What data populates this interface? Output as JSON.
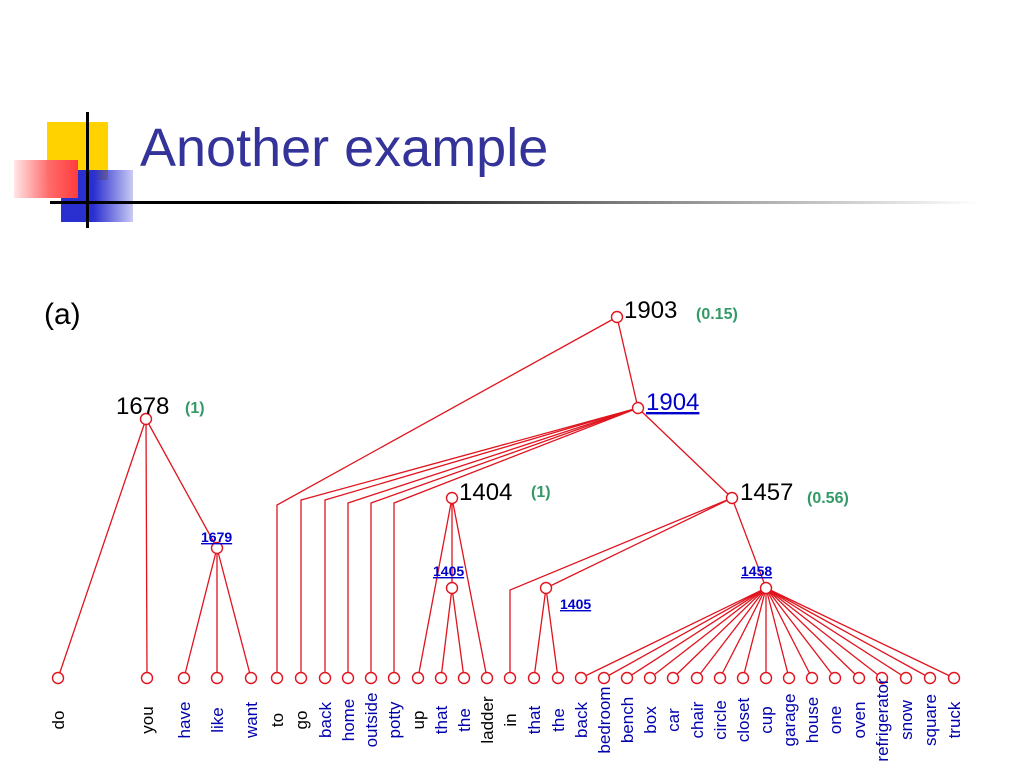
{
  "slide": {
    "title": "Another example",
    "label": "(a)"
  },
  "colors": {
    "title": "#333399",
    "edges": "#e0141e",
    "probability": "#339966",
    "link": "#0000cc",
    "leaf_blue": "#0000aa"
  },
  "diagram": {
    "nodes": {
      "n1678": {
        "label": "1678",
        "prob": "(1)"
      },
      "n1679": {
        "label": "1679"
      },
      "n1903": {
        "label": "1903",
        "prob": "(0.15)"
      },
      "n1904": {
        "label": "1904"
      },
      "n1404": {
        "label": "1404",
        "prob": "(1)"
      },
      "n1405a": {
        "label": "1405"
      },
      "n1405b": {
        "label": "1405"
      },
      "n1457": {
        "label": "1457",
        "prob": "(0.56)"
      },
      "n1458": {
        "label": "1458"
      }
    },
    "leaves": [
      {
        "id": "do",
        "text": "do",
        "color": "black"
      },
      {
        "id": "you",
        "text": "you",
        "color": "black"
      },
      {
        "id": "have",
        "text": "have",
        "color": "blue"
      },
      {
        "id": "like",
        "text": "like",
        "color": "blue"
      },
      {
        "id": "want",
        "text": "want",
        "color": "blue"
      },
      {
        "id": "to",
        "text": "to",
        "color": "black"
      },
      {
        "id": "go",
        "text": "go",
        "color": "black"
      },
      {
        "id": "back1",
        "text": "back",
        "color": "blue"
      },
      {
        "id": "home",
        "text": "home",
        "color": "blue"
      },
      {
        "id": "outside",
        "text": "outside",
        "color": "blue"
      },
      {
        "id": "potty",
        "text": "potty",
        "color": "blue"
      },
      {
        "id": "up",
        "text": "up",
        "color": "black"
      },
      {
        "id": "that1",
        "text": "that",
        "color": "blue"
      },
      {
        "id": "the1",
        "text": "the",
        "color": "blue"
      },
      {
        "id": "ladder",
        "text": "ladder",
        "color": "black"
      },
      {
        "id": "in",
        "text": "in",
        "color": "black"
      },
      {
        "id": "that2",
        "text": "that",
        "color": "blue"
      },
      {
        "id": "the2",
        "text": "the",
        "color": "blue"
      },
      {
        "id": "back2",
        "text": "back",
        "color": "blue"
      },
      {
        "id": "bedroom",
        "text": "bedroom",
        "color": "blue"
      },
      {
        "id": "bench",
        "text": "bench",
        "color": "blue"
      },
      {
        "id": "box",
        "text": "box",
        "color": "blue"
      },
      {
        "id": "car",
        "text": "car",
        "color": "blue"
      },
      {
        "id": "chair",
        "text": "chair",
        "color": "blue"
      },
      {
        "id": "circle",
        "text": "circle",
        "color": "blue"
      },
      {
        "id": "closet",
        "text": "closet",
        "color": "blue"
      },
      {
        "id": "cup",
        "text": "cup",
        "color": "blue"
      },
      {
        "id": "garage",
        "text": "garage",
        "color": "blue"
      },
      {
        "id": "house",
        "text": "house",
        "color": "blue"
      },
      {
        "id": "one",
        "text": "one",
        "color": "blue"
      },
      {
        "id": "oven",
        "text": "oven",
        "color": "blue"
      },
      {
        "id": "refrigerator",
        "text": "refrigerator",
        "color": "blue"
      },
      {
        "id": "snow",
        "text": "snow",
        "color": "blue"
      },
      {
        "id": "square",
        "text": "square",
        "color": "blue"
      },
      {
        "id": "truck",
        "text": "truck",
        "color": "blue"
      }
    ],
    "edges": [
      [
        "n1678",
        "do"
      ],
      [
        "n1678",
        "you"
      ],
      [
        "n1678",
        "n1679"
      ],
      [
        "n1679",
        "have"
      ],
      [
        "n1679",
        "like"
      ],
      [
        "n1679",
        "want"
      ],
      [
        "n1903",
        "n1904"
      ],
      [
        "n1903",
        "to"
      ],
      [
        "n1904",
        "go"
      ],
      [
        "n1904",
        "back1"
      ],
      [
        "n1904",
        "home"
      ],
      [
        "n1904",
        "outside"
      ],
      [
        "n1904",
        "potty"
      ],
      [
        "n1904",
        "n1457"
      ],
      [
        "n1404",
        "up"
      ],
      [
        "n1404",
        "n1405a"
      ],
      [
        "n1404",
        "ladder"
      ],
      [
        "n1405a",
        "that1"
      ],
      [
        "n1405a",
        "the1"
      ],
      [
        "n1457",
        "in"
      ],
      [
        "n1457",
        "n1405b"
      ],
      [
        "n1457",
        "n1458"
      ],
      [
        "n1405b",
        "that2"
      ],
      [
        "n1405b",
        "the2"
      ],
      [
        "n1458",
        "back2"
      ],
      [
        "n1458",
        "bedroom"
      ],
      [
        "n1458",
        "bench"
      ],
      [
        "n1458",
        "box"
      ],
      [
        "n1458",
        "car"
      ],
      [
        "n1458",
        "chair"
      ],
      [
        "n1458",
        "circle"
      ],
      [
        "n1458",
        "closet"
      ],
      [
        "n1458",
        "cup"
      ],
      [
        "n1458",
        "garage"
      ],
      [
        "n1458",
        "house"
      ],
      [
        "n1458",
        "one"
      ],
      [
        "n1458",
        "oven"
      ],
      [
        "n1458",
        "refrigerator"
      ],
      [
        "n1458",
        "snow"
      ],
      [
        "n1458",
        "square"
      ],
      [
        "n1458",
        "truck"
      ]
    ]
  }
}
